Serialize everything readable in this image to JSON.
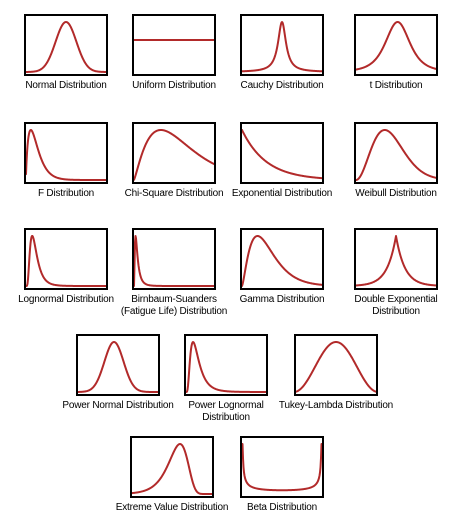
{
  "curve_color": "#b22a2a",
  "distributions": [
    {
      "label": "Normal Distribution",
      "shape": "normal"
    },
    {
      "label": "Uniform Distribution",
      "shape": "uniform"
    },
    {
      "label": "Cauchy Distribution",
      "shape": "cauchy"
    },
    {
      "label": "t Distribution",
      "shape": "t"
    },
    {
      "label": "F Distribution",
      "shape": "f"
    },
    {
      "label": "Chi-Square Distribution",
      "shape": "chisquare"
    },
    {
      "label": "Exponential Distribution",
      "shape": "exponential"
    },
    {
      "label": "Weibull Distribution",
      "shape": "weibull"
    },
    {
      "label": "Lognormal Distribution",
      "shape": "lognormal"
    },
    {
      "label": "Birnbaum-Suanders\n(Fatigue Life) Distribution",
      "shape": "birnbaum"
    },
    {
      "label": "Gamma Distribution",
      "shape": "gamma"
    },
    {
      "label": "Double Exponential\nDistribution",
      "shape": "doubleexp"
    },
    {
      "label": "Power Normal Distribution",
      "shape": "powernormal"
    },
    {
      "label": "Power Lognormal\nDistribution",
      "shape": "powerlognormal"
    },
    {
      "label": "Tukey-Lambda Distribution",
      "shape": "tukey"
    },
    {
      "label": "Extreme Value Distribution",
      "shape": "extreme"
    },
    {
      "label": "Beta Distribution",
      "shape": "beta"
    }
  ]
}
